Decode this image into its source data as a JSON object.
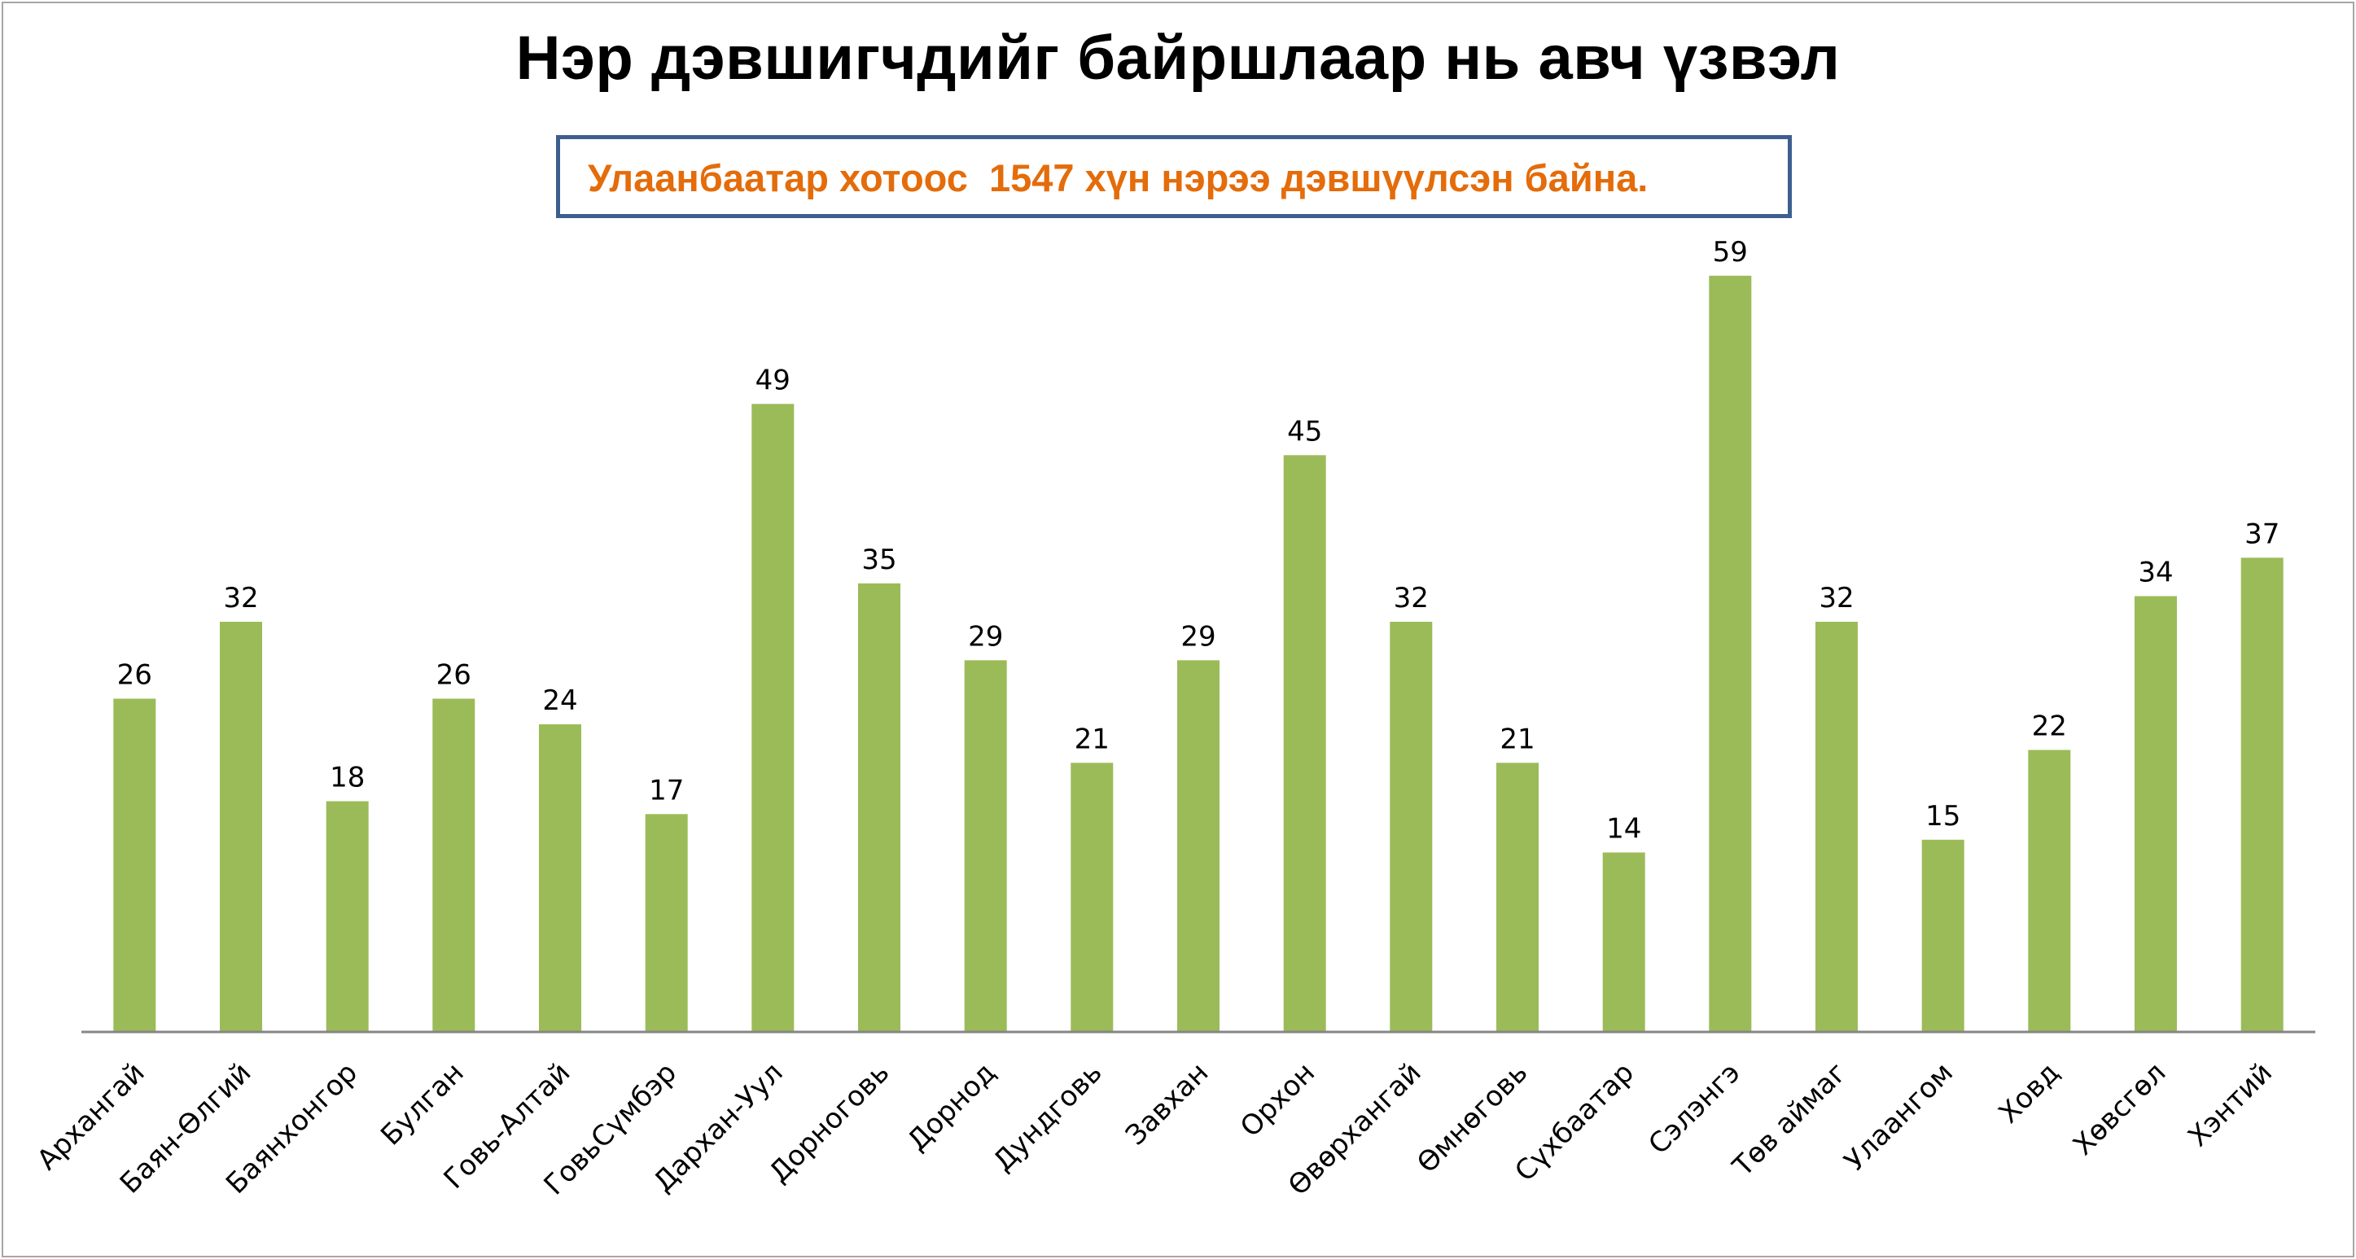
{
  "chart_data": {
    "type": "bar",
    "title": "Нэр дэвшигчдийг байршлаар нь авч үзвэл",
    "annotation": "Улаанбаатар хотоос  1547 хүн нэрээ дэвшүүлсэн байна.",
    "categories": [
      "Архангай",
      "Баян-Өлгий",
      "Баянхонгор",
      "Булган",
      "Говь-Алтай",
      "ГовьСүмбэр",
      "Дархан-Уул",
      "Дорноговь",
      "Дорнод",
      "Дундговь",
      "Завхан",
      "Орхон",
      "Өвөрхангай",
      "Өмнөговь",
      "Сүхбаатар",
      "Сэлэнгэ",
      "Төв аймаг",
      "Улаангом",
      "Ховд",
      "Хөвсгөл",
      "Хэнтий"
    ],
    "values": [
      26,
      32,
      18,
      26,
      24,
      17,
      49,
      35,
      29,
      21,
      29,
      45,
      32,
      21,
      14,
      59,
      32,
      15,
      22,
      34,
      37
    ],
    "data_labels": true,
    "xlabel": "",
    "ylabel": "",
    "ylim": [
      0,
      60
    ],
    "grid": false,
    "legend": "none"
  },
  "colors": {
    "bar": "#9bbb59",
    "axis": "#868686",
    "annotation_text": "#e46c0a",
    "annotation_border": "#3c5f8f",
    "frame": "#a6a6a6"
  }
}
